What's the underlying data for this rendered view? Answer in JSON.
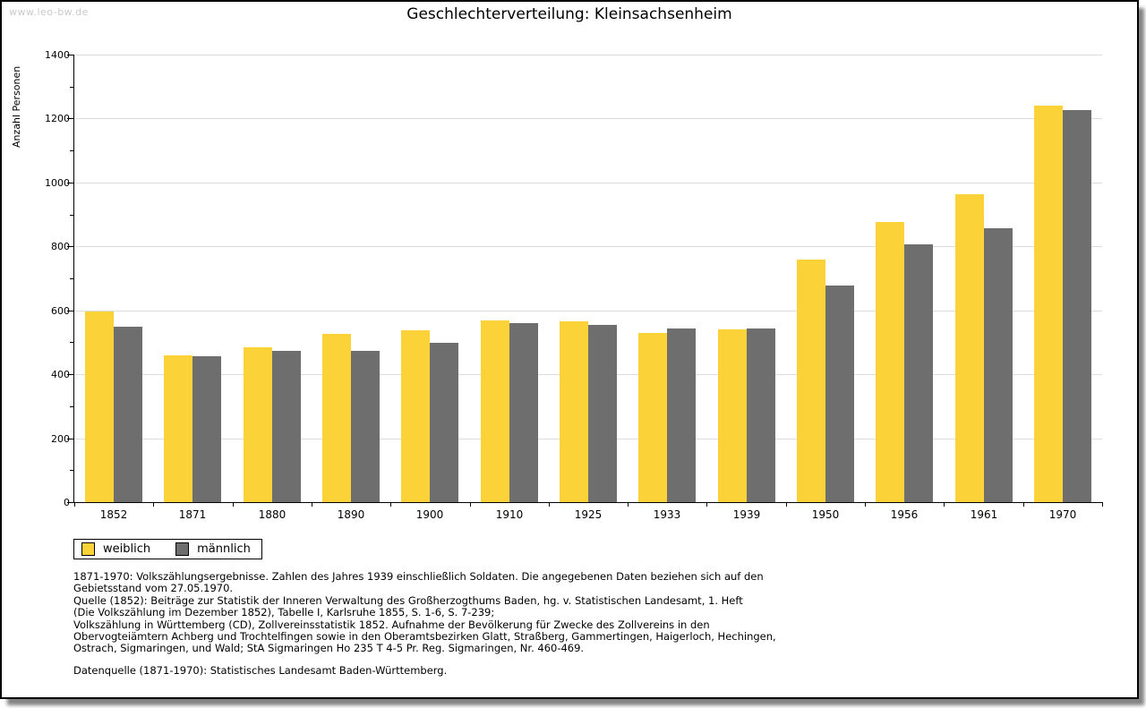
{
  "watermark": "www.leo-bw.de",
  "chart_data": {
    "type": "bar",
    "title": "Geschlechterverteilung: Kleinsachsenheim",
    "ylabel": "Anzahl Personen",
    "ylim": [
      0,
      1400
    ],
    "ytick_step": 200,
    "yminor_step": 100,
    "grid": true,
    "legend_position": "bottom-left",
    "categories": [
      "1852",
      "1871",
      "1880",
      "1890",
      "1900",
      "1910",
      "1925",
      "1933",
      "1939",
      "1950",
      "1956",
      "1961",
      "1970"
    ],
    "series": [
      {
        "name": "weiblich",
        "color": "#FBD338",
        "values": [
          595,
          460,
          484,
          525,
          538,
          567,
          565,
          530,
          541,
          760,
          875,
          962,
          1240
        ]
      },
      {
        "name": "männlich",
        "color": "#6E6E6E",
        "values": [
          548,
          455,
          472,
          473,
          498,
          560,
          553,
          542,
          542,
          677,
          807,
          858,
          1225
        ]
      }
    ]
  },
  "footnotes": {
    "lines": [
      "1871-1970: Volkszählungsergebnisse. Zahlen des Jahres 1939 einschließlich Soldaten. Die angegebenen Daten beziehen sich auf den",
      "Gebietsstand vom 27.05.1970.",
      "Quelle (1852): Beiträge zur Statistik der Inneren Verwaltung des Großherzogthums Baden, hg. v. Statistischen Landesamt, 1. Heft",
      "(Die Volkszählung im Dezember 1852), Tabelle I, Karlsruhe 1855, S. 1-6, S. 7-239;",
      "Volkszählung in Württemberg (CD), Zollvereinsstatistik 1852. Aufnahme der Bevölkerung für Zwecke des Zollvereins in den",
      "Obervogteiämtern Achberg und Trochtelfingen sowie in den Oberamtsbezirken Glatt, Straßberg, Gammertingen, Haigerloch, Hechingen,",
      "Ostrach, Sigmaringen, und Wald; StA Sigmaringen Ho 235 T 4-5 Pr. Reg. Sigmaringen, Nr. 460-469."
    ],
    "datenquelle": "Datenquelle (1871-1970): Statistisches Landesamt Baden-Württemberg."
  }
}
